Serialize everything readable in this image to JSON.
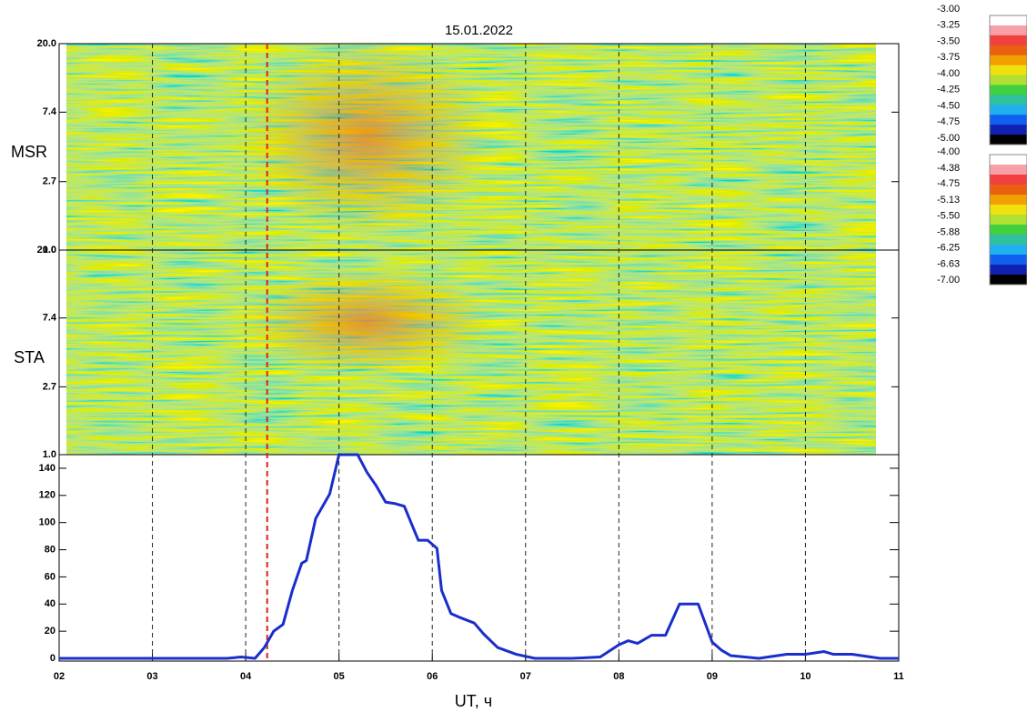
{
  "chart_data": [
    {
      "type": "spectrogram",
      "title": "15.01.2022",
      "ylabel": "MSR",
      "log": true,
      "ylim": [
        1,
        20
      ],
      "yticks": [
        {
          "value": 20,
          "label": "20.0"
        },
        7.4,
        2.7,
        {
          "value": 1,
          "label": "1.0"
        }
      ],
      "colorbar": {
        "colors": [
          "#ffffff",
          "#f7a0a8",
          "#f04040",
          "#e86010",
          "#f0a000",
          "#f0e010",
          "#b0e030",
          "#40d040",
          "#30c0a0",
          "#20b0f0",
          "#1060f0",
          "#1020b0",
          "#000000"
        ],
        "ticks": [
          {
            "value": -3,
            "label": "-3.00"
          },
          {
            "value": -3.25,
            "label": "-3.25"
          },
          {
            "value": -3.5,
            "label": "-3.50"
          },
          {
            "value": -3.75,
            "label": "-3.75"
          },
          {
            "value": -4,
            "label": "-4.00"
          },
          {
            "value": -4.25,
            "label": "-4.25"
          },
          {
            "value": -4.5,
            "label": "-4.50"
          },
          {
            "value": -4.75,
            "label": "-4.75"
          },
          {
            "value": -5,
            "label": "-5.00"
          }
        ]
      }
    },
    {
      "type": "spectrogram",
      "ylabel": "STA",
      "log": true,
      "ylim": [
        1,
        20
      ],
      "yticks": [
        {
          "value": 20,
          "label": "20.0"
        },
        7.4,
        2.7,
        {
          "value": 1,
          "label": "1.0"
        }
      ],
      "colorbar": {
        "colors": [
          "#ffffff",
          "#f7a0a8",
          "#f04040",
          "#e86010",
          "#f0a000",
          "#f0e010",
          "#b0e030",
          "#40d040",
          "#30c0a0",
          "#20b0f0",
          "#1060f0",
          "#1020b0",
          "#000000"
        ],
        "ticks": [
          {
            "value": -4,
            "label": "-4.00"
          },
          {
            "value": -4.38,
            "label": "-4.38"
          },
          {
            "value": -4.75,
            "label": "-4.75"
          },
          {
            "value": -5.13,
            "label": "-5.13"
          },
          {
            "value": -5.5,
            "label": "-5.50"
          },
          {
            "value": -5.88,
            "label": "-5.88"
          },
          {
            "value": -6.25,
            "label": "-6.25"
          },
          {
            "value": -6.63,
            "label": "-6.63"
          },
          {
            "value": -7,
            "label": "-7.00"
          }
        ]
      }
    },
    {
      "type": "line",
      "xlabel": "UT, ч",
      "color": "#1a2ecc",
      "marker_color": "#e02020",
      "marker_x": 4.23,
      "xlim": [
        2,
        11
      ],
      "xticks": [
        {
          "value": 2,
          "label": "02"
        },
        {
          "value": 3,
          "label": "03"
        },
        {
          "value": 4,
          "label": "04"
        },
        {
          "value": 5,
          "label": "05"
        },
        {
          "value": 6,
          "label": "06"
        },
        {
          "value": 7,
          "label": "07"
        },
        {
          "value": 8,
          "label": "08"
        },
        {
          "value": 9,
          "label": "09"
        },
        {
          "value": 10,
          "label": "10"
        },
        {
          "value": 11,
          "label": "11"
        }
      ],
      "ylim": [
        -2,
        150
      ],
      "yticks": [
        0,
        20,
        40,
        60,
        80,
        100,
        120,
        140
      ],
      "x": [
        2.0,
        3.0,
        3.8,
        3.95,
        4.1,
        4.2,
        4.3,
        4.4,
        4.5,
        4.6,
        4.65,
        4.75,
        4.85,
        4.9,
        5.0,
        5.2,
        5.3,
        5.4,
        5.5,
        5.6,
        5.7,
        5.85,
        5.95,
        6.05,
        6.1,
        6.2,
        6.3,
        6.45,
        6.55,
        6.7,
        6.9,
        7.1,
        7.5,
        7.8,
        8.0,
        8.1,
        8.2,
        8.35,
        8.5,
        8.65,
        8.85,
        9.0,
        9.1,
        9.2,
        9.5,
        9.8,
        10.0,
        10.2,
        10.3,
        10.5,
        10.7,
        10.8,
        11.0
      ],
      "values": [
        0,
        0,
        0,
        1,
        0,
        8,
        20,
        25,
        50,
        70,
        72,
        103,
        115,
        121,
        150,
        150,
        137,
        127,
        115,
        114,
        112,
        87,
        87,
        81,
        50,
        33,
        30,
        26,
        18,
        8,
        3,
        0,
        0,
        1,
        10,
        13,
        11,
        17,
        17,
        40,
        40,
        12,
        6,
        2,
        0,
        3,
        3,
        5,
        3,
        3,
        1,
        0,
        0
      ]
    }
  ]
}
